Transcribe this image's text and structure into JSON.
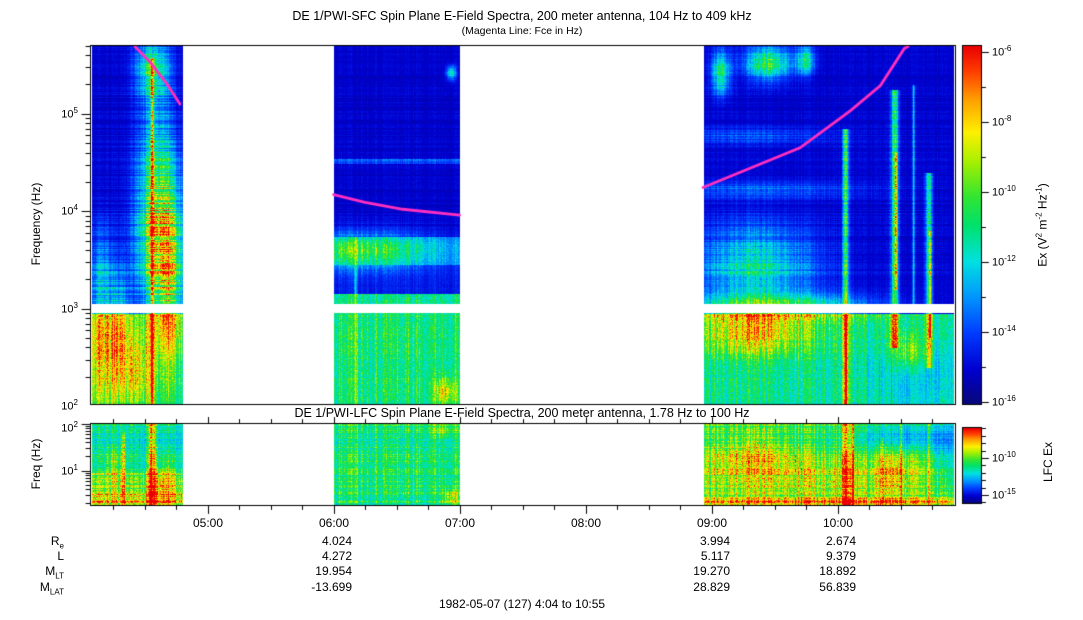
{
  "titles": {
    "sfc": "DE 1/PWI-SFC  Spin Plane E-Field Spectra, 200 meter antenna, 104 Hz to 409 kHz",
    "subtitle": "(Magenta Line: Fce in Hz)",
    "lfc": "DE 1/PWI-LFC  Spin Plane E-Field Spectra, 200 meter antenna, 1.78 Hz to 100 Hz"
  },
  "footer": "1982-05-07 (127) 4:04 to 10:55",
  "axes": {
    "sfc_y_label": "Frequency (Hz)",
    "lfc_y_label": "Freq (Hz)",
    "sfc_y_tick_exps": [
      5,
      4,
      3,
      2
    ],
    "lfc_y_tick_exps": [
      2,
      1
    ],
    "x_tick_labels": [
      "05:00",
      "06:00",
      "07:00",
      "08:00",
      "09:00",
      "10:00"
    ],
    "sfc_cbar_tick_exps": [
      -6,
      -8,
      -10,
      -12,
      -14,
      -16
    ],
    "lfc_cbar_tick_exps": [
      -10,
      -15
    ],
    "sfc_cbar_label_parts": [
      "Ex (V",
      "2",
      " m",
      "-2",
      " Hz",
      "-1",
      ")"
    ],
    "lfc_cbar_label": "LFC Ex"
  },
  "ephemeris": {
    "row_labels": [
      {
        "main": "R",
        "sub": "e"
      },
      {
        "main": "L",
        "sub": ""
      },
      {
        "main": "M",
        "sub": "LT"
      },
      {
        "main": "M",
        "sub": "LAT"
      }
    ],
    "columns": [
      {
        "time": "06:00",
        "values": [
          "4.024",
          "4.272",
          "19.954",
          "-13.699"
        ]
      },
      {
        "time": "09:00",
        "values": [
          "3.994",
          "5.117",
          "19.270",
          "28.829"
        ]
      },
      {
        "time": "10:00",
        "values": [
          "2.674",
          "9.379",
          "18.892",
          "56.839"
        ]
      }
    ]
  },
  "colors": {
    "magenta_line": "#ff2fc0",
    "axis": "#000000",
    "background": "#ffffff"
  },
  "chart_data": {
    "type": "heatmap",
    "title": "DE 1/PWI-SFC Spin Plane E-Field Spectra, 200 meter antenna, 104 Hz to 409 kHz",
    "subtitle": "DE 1/PWI-LFC Spin Plane E-Field Spectra, 200 meter antenna, 1.78 Hz to 100 Hz",
    "date_label": "1982-05-07 (127) 4:04 to 10:55",
    "time_range_hours": [
      4.0667,
      10.9167
    ],
    "x_tick_hours": [
      5,
      6,
      7,
      8,
      9,
      10
    ],
    "legend_position": "right",
    "grid": false,
    "fce_line_note": "Magenta Line: Fce in Hz",
    "panels": [
      {
        "id": "sfc",
        "ylabel": "Frequency (Hz)",
        "ylog_range": [
          2.017,
          5.7
        ],
        "gap_logf": [
          2.95,
          3.04
        ],
        "cbar_label": "Ex (V2 m-2 Hz-1)",
        "cbar_log_range": [
          -16,
          -6
        ],
        "segments": [
          {
            "t0": 4.075,
            "t1": 4.797,
            "features": [
              {
                "k": "base",
                "v": 0.1
              },
              {
                "k": "stripe",
                "amp": 0.3,
                "lf0": 2.95,
                "lf1": 5.7
              },
              {
                "k": "band",
                "lf0": 2.017,
                "lf1": 2.95,
                "v": 0.5
              },
              {
                "k": "blob",
                "t": 4.63,
                "lf": 3.6,
                "st": 0.13,
                "slf": 0.55,
                "v": 0.48
              },
              {
                "k": "blob",
                "t": 4.59,
                "lf": 4.35,
                "st": 0.1,
                "slf": 0.7,
                "v": 0.3
              },
              {
                "k": "blob",
                "t": 4.56,
                "lf": 5.45,
                "st": 0.09,
                "slf": 0.2,
                "v": 0.38
              },
              {
                "k": "blob",
                "t": 4.17,
                "lf": 2.55,
                "st": 0.09,
                "slf": 0.4,
                "v": 0.3
              },
              {
                "k": "blob",
                "t": 4.31,
                "lf": 2.8,
                "st": 0.05,
                "slf": 0.45,
                "v": 0.25
              },
              {
                "k": "blob",
                "t": 4.16,
                "lf": 3.35,
                "st": 0.06,
                "slf": 0.35,
                "v": 0.22
              },
              {
                "k": "blob",
                "t": 4.45,
                "lf": 2.35,
                "st": 0.1,
                "slf": 0.25,
                "v": 0.25
              },
              {
                "k": "blob",
                "t": 4.7,
                "lf": 3.2,
                "st": 0.07,
                "slf": 0.6,
                "v": 0.25
              },
              {
                "k": "vs",
                "t": 4.559,
                "st": 0.007,
                "lf0": 2.017,
                "lf1": 5.58,
                "v": 0.62
              }
            ]
          },
          {
            "t0": 6.0,
            "t1": 7.0,
            "features": [
              {
                "k": "base",
                "v": 0.1
              },
              {
                "k": "stripe",
                "amp": 0.22,
                "lf0": 3.74,
                "lf1": 5.7
              },
              {
                "k": "band",
                "lf0": 2.017,
                "lf1": 2.95,
                "v": 0.52
              },
              {
                "k": "band",
                "lf0": 2.95,
                "lf1": 3.16,
                "v": 0.5
              },
              {
                "k": "band",
                "lf0": 3.16,
                "lf1": 3.45,
                "v": 0.15
              },
              {
                "k": "band",
                "lf0": 3.45,
                "lf1": 3.74,
                "v": 0.28
              },
              {
                "k": "band",
                "lf0": 4.49,
                "lf1": 4.54,
                "v": 0.22
              },
              {
                "k": "blob",
                "t": 6.2,
                "lf": 3.6,
                "st": 0.4,
                "slf": 0.13,
                "v": 0.33
              },
              {
                "k": "vs",
                "t": 6.17,
                "st": 0.008,
                "lf0": 2.017,
                "lf1": 3.74,
                "v": 0.3
              },
              {
                "k": "blob",
                "t": 6.93,
                "lf": 5.42,
                "st": 0.025,
                "slf": 0.05,
                "v": 0.42
              },
              {
                "k": "blob",
                "t": 6.88,
                "lf": 2.15,
                "st": 0.06,
                "slf": 0.1,
                "v": 0.3
              }
            ]
          },
          {
            "t0": 8.932,
            "t1": 10.92,
            "features": [
              {
                "k": "base",
                "v": 0.1
              },
              {
                "k": "stripe",
                "amp": 0.22,
                "lf0": 3.3,
                "lf1": 5.7
              },
              {
                "k": "band",
                "lf0": 2.017,
                "lf1": 2.95,
                "v": 0.48
              },
              {
                "k": "blob",
                "t": 9.07,
                "lf": 5.42,
                "st": 0.05,
                "slf": 0.15,
                "v": 0.42
              },
              {
                "k": "blob",
                "t": 9.45,
                "lf": 5.52,
                "st": 0.13,
                "slf": 0.12,
                "v": 0.45
              },
              {
                "k": "blob",
                "t": 9.74,
                "lf": 5.55,
                "st": 0.05,
                "slf": 0.1,
                "v": 0.35
              },
              {
                "k": "blob",
                "t": 9.3,
                "lf": 4.78,
                "st": 0.45,
                "slf": 0.06,
                "v": 0.13
              },
              {
                "k": "blob",
                "t": 9.4,
                "lf": 4.22,
                "st": 0.55,
                "slf": 0.06,
                "v": 0.15
              },
              {
                "k": "blob",
                "t": 9.35,
                "lf": 3.45,
                "st": 0.33,
                "slf": 0.28,
                "v": 0.33
              },
              {
                "k": "blob",
                "t": 9.5,
                "lf": 3.03,
                "st": 0.5,
                "slf": 0.09,
                "v": 0.42
              },
              {
                "k": "vs",
                "t": 10.06,
                "st": 0.015,
                "lf0": 2.017,
                "lf1": 4.85,
                "v": 0.45
              },
              {
                "k": "vs",
                "t": 10.065,
                "st": 0.006,
                "lf0": 2.017,
                "lf1": 2.95,
                "v": 0.4
              },
              {
                "k": "vs",
                "t": 10.45,
                "st": 0.02,
                "lf0": 2.6,
                "lf1": 5.25,
                "v": 0.42
              },
              {
                "k": "vs",
                "t": 10.46,
                "st": 0.008,
                "lf0": 3.2,
                "lf1": 4.6,
                "v": 0.3
              },
              {
                "k": "vs",
                "t": 10.6,
                "st": 0.006,
                "lf0": 3.0,
                "lf1": 5.3,
                "v": 0.28
              },
              {
                "k": "vs",
                "t": 10.72,
                "st": 0.018,
                "lf0": 2.4,
                "lf1": 4.4,
                "v": 0.38
              },
              {
                "k": "vs",
                "t": 10.73,
                "st": 0.007,
                "lf0": 2.7,
                "lf1": 3.8,
                "v": 0.28
              },
              {
                "k": "blob",
                "t": 9.35,
                "lf": 2.75,
                "st": 0.3,
                "slf": 0.16,
                "v": 0.3
              },
              {
                "k": "blob",
                "t": 10.6,
                "lf": 2.35,
                "st": 0.25,
                "slf": 0.3,
                "v": -0.15
              },
              {
                "k": "blob",
                "t": 10.55,
                "lf": 2.55,
                "st": 0.1,
                "slf": 0.15,
                "v": 0.25
              }
            ]
          }
        ],
        "fce_lines_t_logf": [
          [
            [
              4.424,
              5.7
            ],
            [
              4.55,
              5.52
            ],
            [
              4.68,
              5.3
            ],
            [
              4.78,
              5.1
            ]
          ],
          [
            [
              6.0,
              4.17
            ],
            [
              6.25,
              4.09
            ],
            [
              6.55,
              4.02
            ],
            [
              7.0,
              3.96
            ]
          ],
          [
            [
              8.932,
              4.244
            ],
            [
              9.305,
              4.44
            ],
            [
              9.702,
              4.65
            ],
            [
              10.1,
              5.03
            ],
            [
              10.34,
              5.29
            ],
            [
              10.53,
              5.67
            ],
            [
              10.56,
              5.72
            ]
          ]
        ]
      },
      {
        "id": "lfc",
        "ylabel": "Freq (Hz)",
        "ylog_range": [
          0.255,
          2.0
        ],
        "cbar_label": "LFC Ex",
        "cbar_log_range": [
          -16,
          -6
        ],
        "segments": [
          {
            "t0": 4.075,
            "t1": 4.797,
            "features": [
              {
                "k": "base",
                "v": 0.45
              },
              {
                "k": "stripe",
                "amp": 0.18,
                "lf0": 0.255,
                "lf1": 2.0
              },
              {
                "k": "band",
                "lf0": 1.72,
                "lf1": 2.0,
                "v": 0.4
              },
              {
                "k": "band",
                "lf0": 0.5,
                "lf1": 0.95,
                "v": 0.6
              },
              {
                "k": "band",
                "lf0": 0.255,
                "lf1": 0.5,
                "v": 0.78
              },
              {
                "k": "vs",
                "t": 4.33,
                "st": 0.012,
                "lf0": 0.255,
                "lf1": 1.8,
                "v": 0.28
              },
              {
                "k": "vs",
                "t": 4.56,
                "st": 0.02,
                "lf0": 0.255,
                "lf1": 2.0,
                "v": 0.42
              },
              {
                "k": "blob",
                "t": 4.65,
                "lf": 0.7,
                "st": 0.08,
                "slf": 0.35,
                "v": 0.22
              },
              {
                "k": "blob",
                "t": 4.25,
                "lf": 1.1,
                "st": 0.05,
                "slf": 0.3,
                "v": 0.15
              }
            ]
          },
          {
            "t0": 6.0,
            "t1": 7.0,
            "features": [
              {
                "k": "base",
                "v": 0.52
              },
              {
                "k": "stripe",
                "amp": 0.14,
                "lf0": 0.255,
                "lf1": 2.0
              },
              {
                "k": "band",
                "lf0": 1.28,
                "lf1": 1.45,
                "v": 0.44
              },
              {
                "k": "band",
                "lf0": 0.78,
                "lf1": 0.95,
                "v": 0.45
              },
              {
                "k": "vs",
                "t": 6.17,
                "st": 0.01,
                "lf0": 0.255,
                "lf1": 2.0,
                "v": 0.16
              },
              {
                "k": "blob",
                "t": 6.93,
                "lf": 0.42,
                "st": 0.05,
                "slf": 0.12,
                "v": 0.28
              },
              {
                "k": "blob",
                "t": 6.86,
                "lf": 1.85,
                "st": 0.07,
                "slf": 0.1,
                "v": 0.16
              }
            ]
          },
          {
            "t0": 8.932,
            "t1": 10.92,
            "features": [
              {
                "k": "base",
                "v": 0.55
              },
              {
                "k": "stripe",
                "amp": 0.14,
                "lf0": 0.255,
                "lf1": 2.0
              },
              {
                "k": "band",
                "lf0": 0.255,
                "lf1": 0.45,
                "v": 0.75
              },
              {
                "k": "blob",
                "t": 9.6,
                "lf": 0.85,
                "st": 0.6,
                "slf": 0.28,
                "v": 0.16
              },
              {
                "k": "blob",
                "t": 9.35,
                "lf": 1.35,
                "st": 0.28,
                "slf": 0.3,
                "v": 0.18
              },
              {
                "k": "blob",
                "t": 9.8,
                "lf": 0.32,
                "st": 0.7,
                "slf": 0.12,
                "v": 0.12
              },
              {
                "k": "blob",
                "t": 10.55,
                "lf": 1.75,
                "st": 0.3,
                "slf": 0.25,
                "v": -0.22
              },
              {
                "k": "blob",
                "t": 10.87,
                "lf": 1.5,
                "st": 0.08,
                "slf": 0.5,
                "v": -0.15
              },
              {
                "k": "vs",
                "t": 10.06,
                "st": 0.02,
                "lf0": 0.255,
                "lf1": 2.0,
                "v": 0.35
              },
              {
                "k": "vs",
                "t": 10.12,
                "st": 0.01,
                "lf0": 0.255,
                "lf1": 2.0,
                "v": 0.3
              },
              {
                "k": "vs",
                "t": 10.35,
                "st": 0.007,
                "lf0": 0.255,
                "lf1": 1.7,
                "v": 0.28
              },
              {
                "k": "vs",
                "t": 10.5,
                "st": 0.006,
                "lf0": 0.255,
                "lf1": 2.0,
                "v": 0.3
              },
              {
                "k": "vs",
                "t": 10.72,
                "st": 0.006,
                "lf0": 0.255,
                "lf1": 2.0,
                "v": 0.26
              },
              {
                "k": "blob",
                "t": 10.45,
                "lf": 1.0,
                "st": 0.12,
                "slf": 0.35,
                "v": 0.15
              }
            ]
          }
        ],
        "fce_lines_t_logf": []
      }
    ],
    "palette": [
      [
        0.0,
        8,
        8,
        120
      ],
      [
        0.1,
        0,
        0,
        210
      ],
      [
        0.2,
        0,
        60,
        255
      ],
      [
        0.3,
        0,
        150,
        255
      ],
      [
        0.4,
        0,
        225,
        225
      ],
      [
        0.5,
        0,
        225,
        110
      ],
      [
        0.58,
        50,
        230,
        50
      ],
      [
        0.68,
        170,
        240,
        0
      ],
      [
        0.76,
        255,
        240,
        0
      ],
      [
        0.85,
        255,
        160,
        0
      ],
      [
        0.93,
        255,
        60,
        0
      ],
      [
        1.0,
        235,
        0,
        0
      ]
    ]
  }
}
